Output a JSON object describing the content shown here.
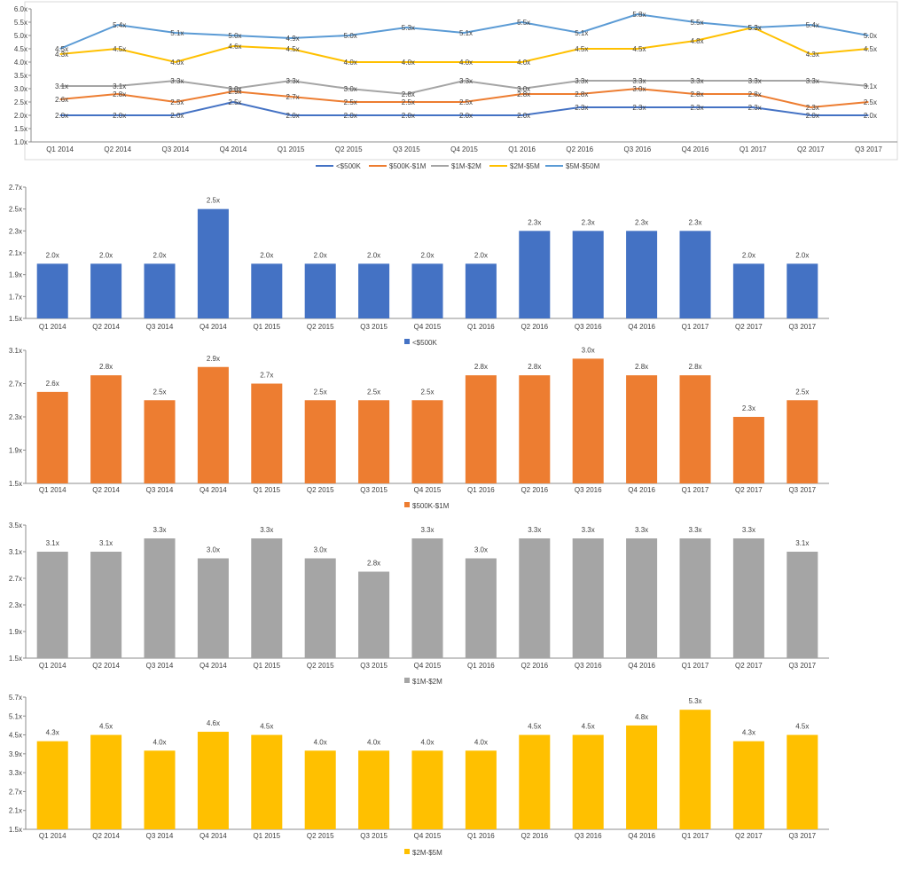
{
  "chart_data": [
    {
      "type": "line",
      "categories": [
        "Q1 2014",
        "Q2 2014",
        "Q3 2014",
        "Q4 2014",
        "Q1 2015",
        "Q2 2015",
        "Q3 2015",
        "Q4 2015",
        "Q1 2016",
        "Q2 2016",
        "Q3 2016",
        "Q4 2016",
        "Q1 2017",
        "Q2 2017",
        "Q3 2017"
      ],
      "ylim": [
        1.0,
        6.0
      ],
      "yticks": [
        "1.0x",
        "1.5x",
        "2.0x",
        "2.5x",
        "3.0x",
        "3.5x",
        "4.0x",
        "4.5x",
        "5.0x",
        "5.5x",
        "6.0x"
      ],
      "legend_position": "bottom",
      "series": [
        {
          "name": "<$500K",
          "color": "#4472c4",
          "values": [
            2.0,
            2.0,
            2.0,
            2.5,
            2.0,
            2.0,
            2.0,
            2.0,
            2.0,
            2.3,
            2.3,
            2.3,
            2.3,
            2.0,
            2.0
          ],
          "labels": [
            "2.0x",
            "2.0x",
            "2.0x",
            "2.5x",
            "2.0x",
            "2.0x",
            "2.0x",
            "2.0x",
            "2.0x",
            "2.3x",
            "2.3x",
            "2.3x",
            "2.3x",
            "2.0x",
            "2.0x"
          ]
        },
        {
          "name": "$500K-$1M",
          "color": "#ed7d31",
          "values": [
            2.6,
            2.8,
            2.5,
            2.9,
            2.7,
            2.5,
            2.5,
            2.5,
            2.8,
            2.8,
            3.0,
            2.8,
            2.8,
            2.3,
            2.5
          ],
          "labels": [
            "2.6x",
            "2.8x",
            "2.5x",
            "2.9x",
            "2.7x",
            "2.5x",
            "2.5x",
            "2.5x",
            "2.8x",
            "2.8x",
            "3.0x",
            "2.8x",
            "2.8x",
            "2.3x",
            "2.5x"
          ]
        },
        {
          "name": "$1M-$2M",
          "color": "#a5a5a5",
          "values": [
            3.1,
            3.1,
            3.3,
            3.0,
            3.3,
            3.0,
            2.8,
            3.3,
            3.0,
            3.3,
            3.3,
            3.3,
            3.3,
            3.3,
            3.1
          ],
          "labels": [
            "3.1x",
            "3.1x",
            "3.3x",
            "3.0x",
            "3.3x",
            "3.0x",
            "2.8x",
            "3.3x",
            "3.0x",
            "3.3x",
            "3.3x",
            "3.3x",
            "3.3x",
            "3.3x",
            "3.1x"
          ]
        },
        {
          "name": "$2M-$5M",
          "color": "#ffc000",
          "values": [
            4.3,
            4.5,
            4.0,
            4.6,
            4.5,
            4.0,
            4.0,
            4.0,
            4.0,
            4.5,
            4.5,
            4.8,
            5.3,
            4.3,
            4.5
          ],
          "labels": [
            "4.3x",
            "4.5x",
            "4.0x",
            "4.6x",
            "4.5x",
            "4.0x",
            "4.0x",
            "4.0x",
            "4.0x",
            "4.5x",
            "4.5x",
            "4.8x",
            "5.3x",
            "4.3x",
            "4.5x"
          ]
        },
        {
          "name": "$5M-$50M",
          "color": "#5b9bd5",
          "values": [
            4.5,
            5.4,
            5.1,
            5.0,
            4.9,
            5.0,
            5.3,
            5.1,
            5.5,
            5.1,
            5.8,
            5.5,
            5.3,
            5.4,
            5.0
          ],
          "labels": [
            "4.5x",
            "5.4x",
            "5.1x",
            "5.0x",
            "4.9x",
            "5.0x",
            "5.3x",
            "5.1x",
            "5.5x",
            "5.1x",
            "5.8x",
            "5.5x",
            "5.3x",
            "5.4x",
            "5.0x"
          ]
        }
      ]
    },
    {
      "type": "bar",
      "categories": [
        "Q1 2014",
        "Q2 2014",
        "Q3 2014",
        "Q4 2014",
        "Q1 2015",
        "Q2 2015",
        "Q3 2015",
        "Q4 2015",
        "Q1 2016",
        "Q2 2016",
        "Q3 2016",
        "Q4 2016",
        "Q1 2017",
        "Q2 2017",
        "Q3 2017"
      ],
      "ylim": [
        1.5,
        2.7
      ],
      "yticks": [
        "1.5x",
        "1.7x",
        "1.9x",
        "2.1x",
        "2.3x",
        "2.5x",
        "2.7x"
      ],
      "legend_position": "bottom",
      "series": [
        {
          "name": "<$500K",
          "color": "#4472c4",
          "values": [
            2.0,
            2.0,
            2.0,
            2.5,
            2.0,
            2.0,
            2.0,
            2.0,
            2.0,
            2.3,
            2.3,
            2.3,
            2.3,
            2.0,
            2.0
          ],
          "labels": [
            "2.0x",
            "2.0x",
            "2.0x",
            "2.5x",
            "2.0x",
            "2.0x",
            "2.0x",
            "2.0x",
            "2.0x",
            "2.3x",
            "2.3x",
            "2.3x",
            "2.3x",
            "2.0x",
            "2.0x"
          ]
        }
      ]
    },
    {
      "type": "bar",
      "categories": [
        "Q1 2014",
        "Q2 2014",
        "Q3 2014",
        "Q4 2014",
        "Q1 2015",
        "Q2 2015",
        "Q3 2015",
        "Q4 2015",
        "Q1 2016",
        "Q2 2016",
        "Q3 2016",
        "Q4 2016",
        "Q1 2017",
        "Q2 2017",
        "Q3 2017"
      ],
      "ylim": [
        1.5,
        3.1
      ],
      "yticks": [
        "1.5x",
        "1.9x",
        "2.3x",
        "2.7x",
        "3.1x"
      ],
      "legend_position": "bottom",
      "series": [
        {
          "name": "$500K-$1M",
          "color": "#ed7d31",
          "values": [
            2.6,
            2.8,
            2.5,
            2.9,
            2.7,
            2.5,
            2.5,
            2.5,
            2.8,
            2.8,
            3.0,
            2.8,
            2.8,
            2.3,
            2.5
          ],
          "labels": [
            "2.6x",
            "2.8x",
            "2.5x",
            "2.9x",
            "2.7x",
            "2.5x",
            "2.5x",
            "2.5x",
            "2.8x",
            "2.8x",
            "3.0x",
            "2.8x",
            "2.8x",
            "2.3x",
            "2.5x"
          ]
        }
      ]
    },
    {
      "type": "bar",
      "categories": [
        "Q1 2014",
        "Q2 2014",
        "Q3 2014",
        "Q4 2014",
        "Q1 2015",
        "Q2 2015",
        "Q3 2015",
        "Q4 2015",
        "Q1 2016",
        "Q2 2016",
        "Q3 2016",
        "Q4 2016",
        "Q1 2017",
        "Q2 2017",
        "Q3 2017"
      ],
      "ylim": [
        1.5,
        3.5
      ],
      "yticks": [
        "1.5x",
        "1.9x",
        "2.3x",
        "2.7x",
        "3.1x",
        "3.5x"
      ],
      "legend_position": "bottom",
      "series": [
        {
          "name": "$1M-$2M",
          "color": "#a5a5a5",
          "values": [
            3.1,
            3.1,
            3.3,
            3.0,
            3.3,
            3.0,
            2.8,
            3.3,
            3.0,
            3.3,
            3.3,
            3.3,
            3.3,
            3.3,
            3.1
          ],
          "labels": [
            "3.1x",
            "3.1x",
            "3.3x",
            "3.0x",
            "3.3x",
            "3.0x",
            "2.8x",
            "3.3x",
            "3.0x",
            "3.3x",
            "3.3x",
            "3.3x",
            "3.3x",
            "3.3x",
            "3.1x"
          ]
        }
      ]
    },
    {
      "type": "bar",
      "categories": [
        "Q1 2014",
        "Q2 2014",
        "Q3 2014",
        "Q4 2014",
        "Q1 2015",
        "Q2 2015",
        "Q3 2015",
        "Q4 2015",
        "Q1 2016",
        "Q2 2016",
        "Q3 2016",
        "Q4 2016",
        "Q1 2017",
        "Q2 2017",
        "Q3 2017"
      ],
      "ylim": [
        1.5,
        5.7
      ],
      "yticks": [
        "1.5x",
        "2.1x",
        "2.7x",
        "3.3x",
        "3.9x",
        "4.5x",
        "5.1x",
        "5.7x"
      ],
      "legend_position": "bottom",
      "series": [
        {
          "name": "$2M-$5M",
          "color": "#ffc000",
          "values": [
            4.3,
            4.5,
            4.0,
            4.6,
            4.5,
            4.0,
            4.0,
            4.0,
            4.0,
            4.5,
            4.5,
            4.8,
            5.3,
            4.3,
            4.5
          ],
          "labels": [
            "4.3x",
            "4.5x",
            "4.0x",
            "4.6x",
            "4.5x",
            "4.0x",
            "4.0x",
            "4.0x",
            "4.0x",
            "4.5x",
            "4.5x",
            "4.8x",
            "5.3x",
            "4.3x",
            "4.5x"
          ]
        }
      ]
    }
  ]
}
